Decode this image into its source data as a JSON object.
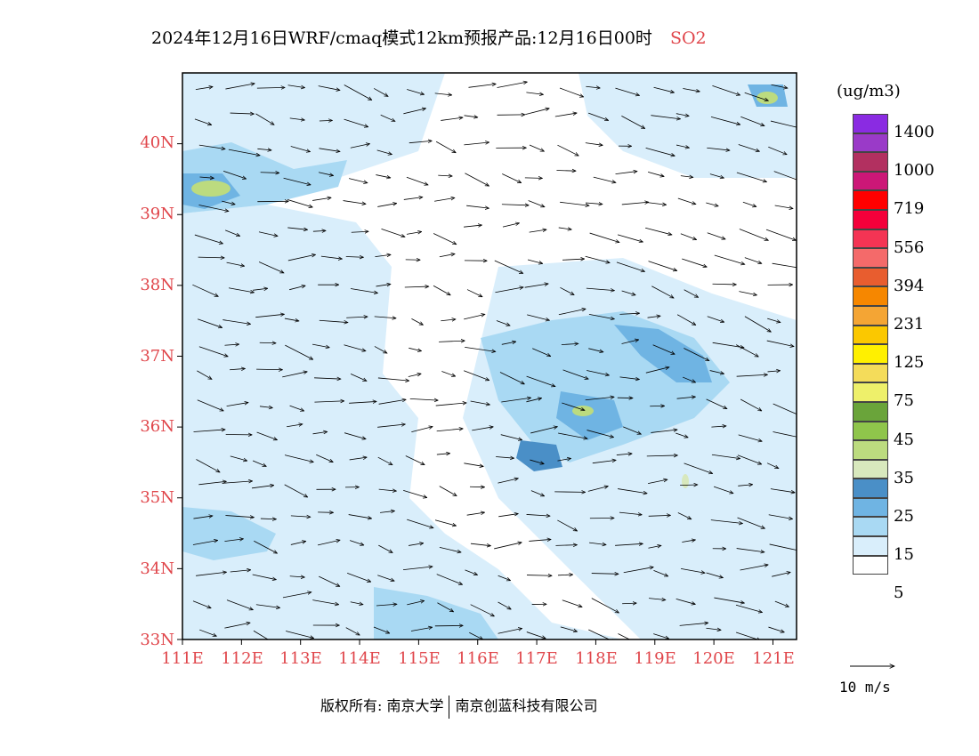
{
  "title": {
    "text": "2024年12月16日WRF/cmaq模式12km预报产品:12月16日00时",
    "pollutant": "SO2"
  },
  "map": {
    "lat_labels": [
      "33N",
      "34N",
      "35N",
      "36N",
      "37N",
      "38N",
      "39N",
      "40N"
    ],
    "lon_labels": [
      "111E",
      "112E",
      "113E",
      "114E",
      "115E",
      "116E",
      "117E",
      "118E",
      "119E",
      "120E",
      "121E"
    ],
    "lat_range": [
      33,
      41
    ],
    "lon_range": [
      111,
      121.4
    ]
  },
  "legend": {
    "unit": "(ug/m3)",
    "colors": [
      "#ffffff",
      "#d9eefb",
      "#a9d9f3",
      "#6fb4e3",
      "#4a8fc7",
      "#d8e8bd",
      "#bcdb7f",
      "#8fc54b",
      "#6aa43a",
      "#eef06a",
      "#f4dc5a",
      "#fff000",
      "#fbc800",
      "#f4a534",
      "#f68700",
      "#e85d2f",
      "#f46a6a",
      "#f43454",
      "#f4003a",
      "#ff0000",
      "#cc1777",
      "#b23060",
      "#9a3ac8",
      "#8a2be2"
    ],
    "labels": [
      "5",
      "15",
      "25",
      "35",
      "45",
      "75",
      "125",
      "231",
      "394",
      "556",
      "719",
      "1000",
      "1400"
    ]
  },
  "vector_key": {
    "label": "10 m/s"
  },
  "footer": {
    "left": "版权所有: 南京大学",
    "right": "南京创蓝科技有限公司"
  }
}
